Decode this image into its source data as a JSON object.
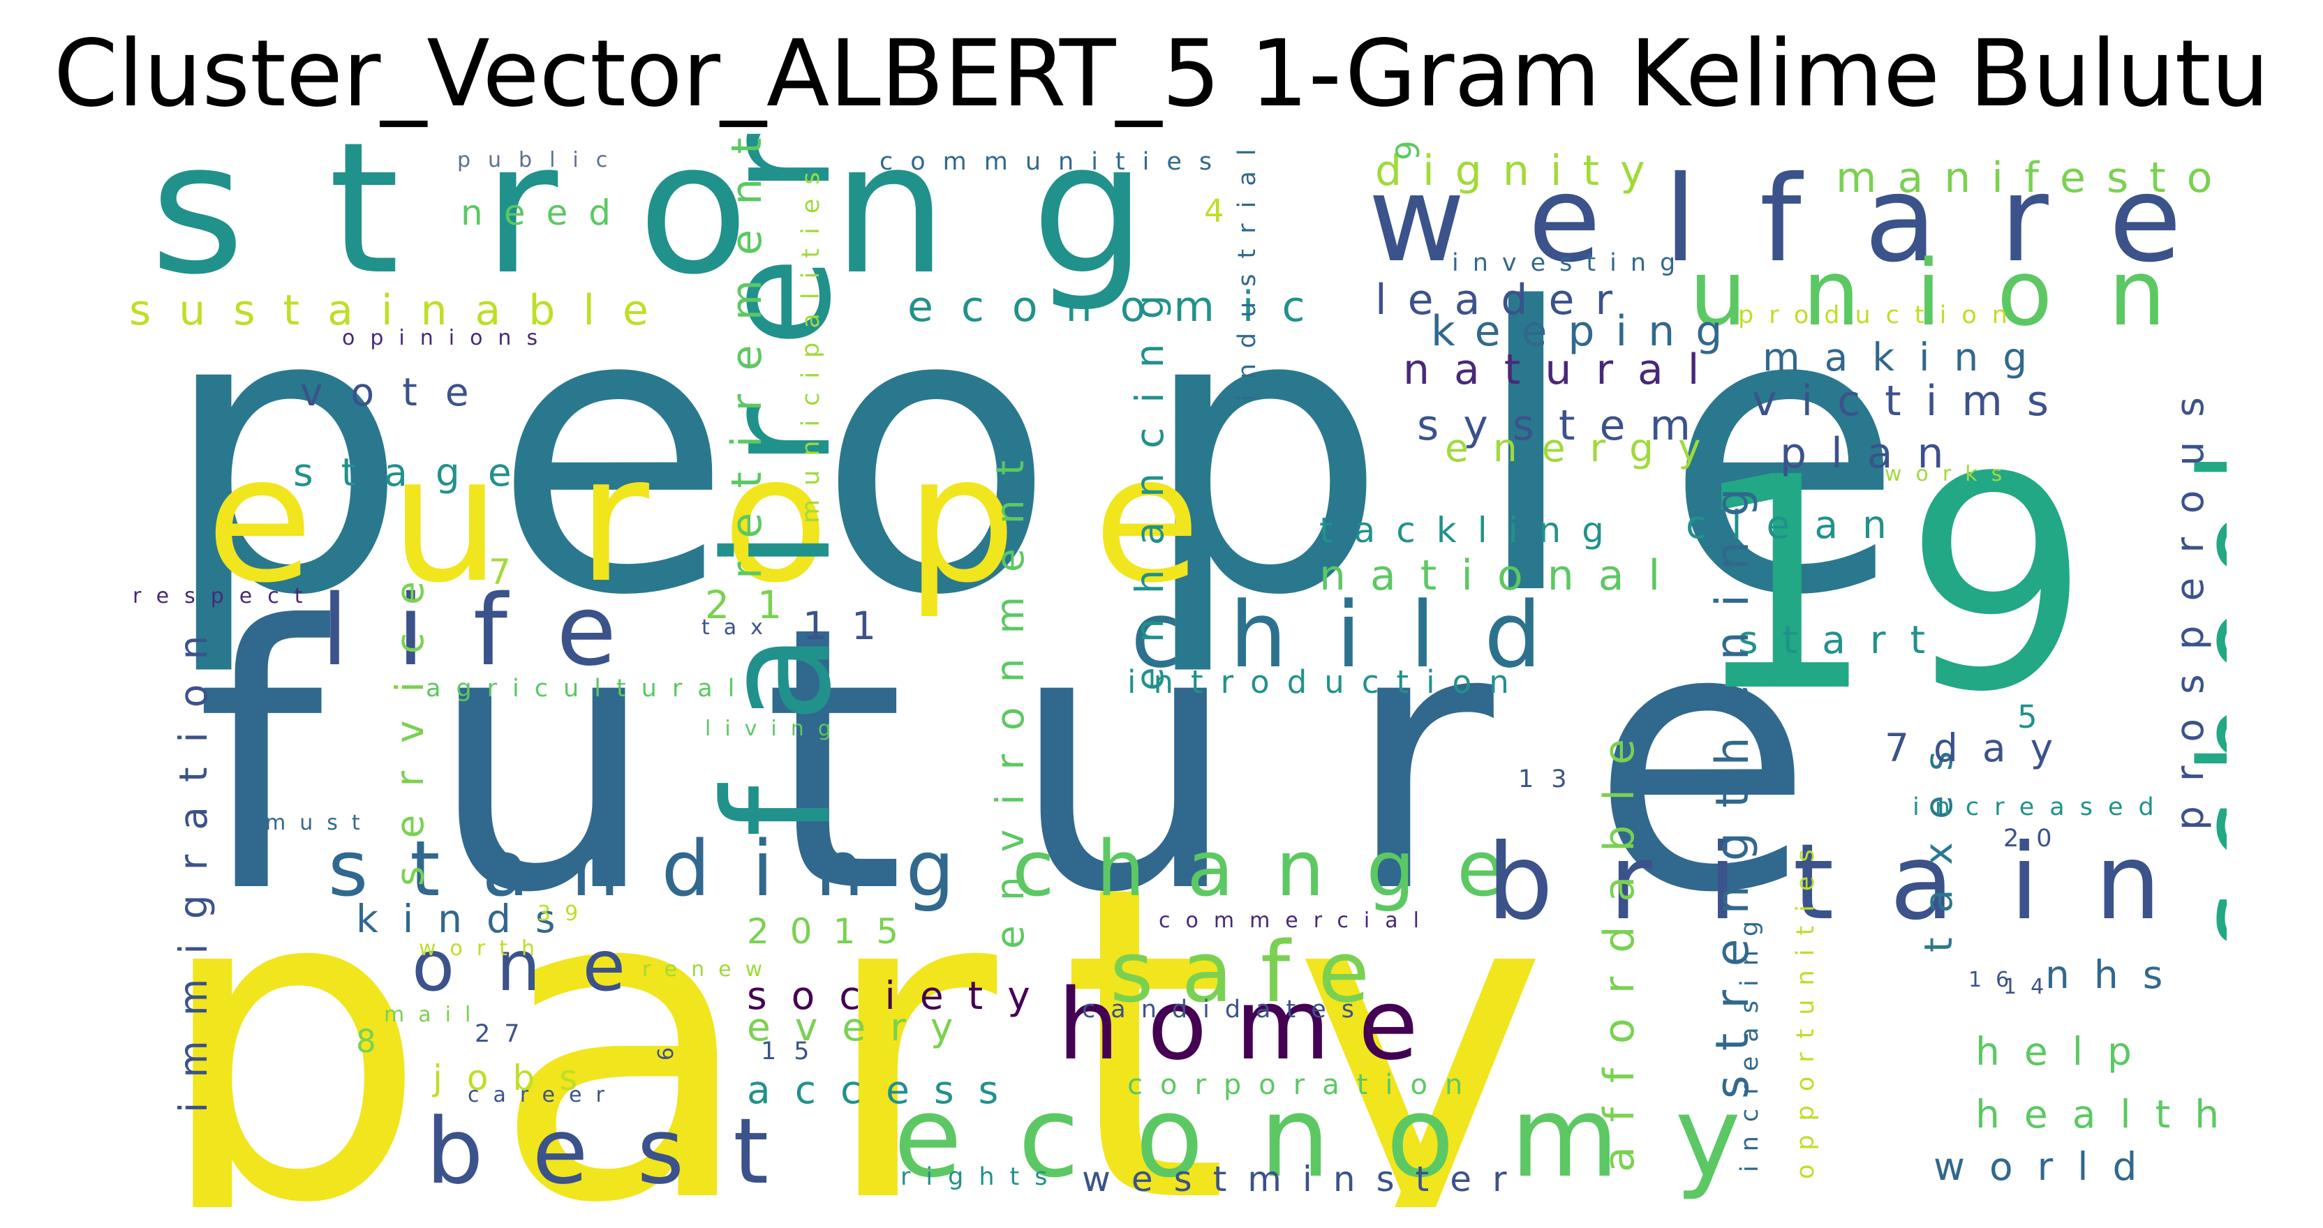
{
  "title": "Cluster_Vector_ALBERT_5 1-Gram Kelime Bulutu",
  "palette": {
    "yellow": "#f1e51d",
    "green": "#5cc863",
    "teal": "#21918c",
    "blue": "#31688e",
    "navy": "#3b528b",
    "purple": "#440154",
    "lime": "#a0da39",
    "seafoam": "#29af7f"
  },
  "words": [
    {
      "text": "people",
      "color": "#2a788e"
    },
    {
      "text": "future",
      "color": "#31688e"
    },
    {
      "text": "party",
      "color": "#f1e51d"
    },
    {
      "text": "strong",
      "color": "#21918c"
    },
    {
      "text": "europe",
      "color": "#f1e51d"
    },
    {
      "text": "19",
      "color": "#22a884"
    },
    {
      "text": "welfare",
      "color": "#3b528b"
    },
    {
      "text": "union",
      "color": "#5cc863"
    },
    {
      "text": "fairer",
      "color": "#21918c"
    },
    {
      "text": "life",
      "color": "#3b528b"
    },
    {
      "text": "child",
      "color": "#2c728e"
    },
    {
      "text": "standing",
      "color": "#31688e"
    },
    {
      "text": "change",
      "color": "#5cc863"
    },
    {
      "text": "britain",
      "color": "#3b528b"
    },
    {
      "text": "school",
      "color": "#22a884"
    },
    {
      "text": "home",
      "color": "#440154"
    },
    {
      "text": "safe",
      "color": "#7ad151"
    },
    {
      "text": "best",
      "color": "#3b528b"
    },
    {
      "text": "economy",
      "color": "#5cc863"
    },
    {
      "text": "one",
      "color": "#3b528b"
    },
    {
      "text": "sustainable",
      "color": "#bddf26"
    },
    {
      "text": "economic",
      "color": "#21918c"
    },
    {
      "text": "dignity",
      "color": "#a0da39"
    },
    {
      "text": "manifesto",
      "color": "#7ad151"
    },
    {
      "text": "leader",
      "color": "#3b528b"
    },
    {
      "text": "keeping",
      "color": "#31688e"
    },
    {
      "text": "natural",
      "color": "#482878"
    },
    {
      "text": "system",
      "color": "#3b528b"
    },
    {
      "text": "energy",
      "color": "#a0da39"
    },
    {
      "text": "making",
      "color": "#31688e"
    },
    {
      "text": "victims",
      "color": "#3b528b"
    },
    {
      "text": "plan",
      "color": "#3b528b"
    },
    {
      "text": "clean",
      "color": "#21918c"
    },
    {
      "text": "tackling",
      "color": "#21918c"
    },
    {
      "text": "national",
      "color": "#5cc863"
    },
    {
      "text": "start",
      "color": "#21918c"
    },
    {
      "text": "introduction",
      "color": "#21918c"
    },
    {
      "text": "enhancing",
      "color": "#21918c"
    },
    {
      "text": "environment",
      "color": "#5cc863"
    },
    {
      "text": "retirement",
      "color": "#5cc863"
    },
    {
      "text": "strengthening",
      "color": "#31688e"
    },
    {
      "text": "affordable",
      "color": "#7ad151"
    },
    {
      "text": "taxes",
      "color": "#2a788e"
    },
    {
      "text": "prosperous",
      "color": "#3b528b"
    },
    {
      "text": "immigration",
      "color": "#3b528b"
    },
    {
      "text": "service",
      "color": "#7ad151"
    },
    {
      "text": "need",
      "color": "#5cc863"
    },
    {
      "text": "communities",
      "color": "#31688e"
    },
    {
      "text": "investing",
      "color": "#31688e"
    },
    {
      "text": "public",
      "color": "#5c6f8e"
    },
    {
      "text": "opinions",
      "color": "#482878"
    },
    {
      "text": "vote",
      "color": "#3b528b"
    },
    {
      "text": "stage",
      "color": "#21918c"
    },
    {
      "text": "respect",
      "color": "#482878"
    },
    {
      "text": "tax",
      "color": "#3b528b"
    },
    {
      "text": "11",
      "color": "#3b528b"
    },
    {
      "text": "21",
      "color": "#7ad151"
    },
    {
      "text": "7",
      "color": "#a0da39"
    },
    {
      "text": "agricultural",
      "color": "#5cc863"
    },
    {
      "text": "living",
      "color": "#5cc863"
    },
    {
      "text": "must",
      "color": "#31688e"
    },
    {
      "text": "kinds",
      "color": "#31688e"
    },
    {
      "text": "39",
      "color": "#bddf26"
    },
    {
      "text": "worth",
      "color": "#bddf26"
    },
    {
      "text": "2015",
      "color": "#7ad151"
    },
    {
      "text": "society",
      "color": "#440154"
    },
    {
      "text": "every",
      "color": "#7ad151"
    },
    {
      "text": "15",
      "color": "#3b528b"
    },
    {
      "text": "mail",
      "color": "#7ad151"
    },
    {
      "text": "27",
      "color": "#3b528b"
    },
    {
      "text": "8",
      "color": "#7ad151"
    },
    {
      "text": "6",
      "color": "#3b528b"
    },
    {
      "text": "jobs",
      "color": "#bddf26"
    },
    {
      "text": "career",
      "color": "#3b528b"
    },
    {
      "text": "access",
      "color": "#21918c"
    },
    {
      "text": "renew",
      "color": "#a0da39"
    },
    {
      "text": "candidates",
      "color": "#3b528b"
    },
    {
      "text": "corporation",
      "color": "#5cc863"
    },
    {
      "text": "commercial",
      "color": "#482878"
    },
    {
      "text": "westminster",
      "color": "#3b528b"
    },
    {
      "text": "rights",
      "color": "#21918c"
    },
    {
      "text": "municipalities",
      "color": "#a0da39"
    },
    {
      "text": "industrial",
      "color": "#31688e"
    },
    {
      "text": "4",
      "color": "#bddf26"
    },
    {
      "text": "9",
      "color": "#5cc863"
    },
    {
      "text": "production",
      "color": "#bddf26"
    },
    {
      "text": "works",
      "color": "#a0da39"
    },
    {
      "text": "13",
      "color": "#3b528b"
    },
    {
      "text": "7day",
      "color": "#3b528b"
    },
    {
      "text": "5",
      "color": "#21918c"
    },
    {
      "text": "increased",
      "color": "#21918c"
    },
    {
      "text": "20",
      "color": "#3b528b"
    },
    {
      "text": "increasing",
      "color": "#31688e"
    },
    {
      "text": "opportunities",
      "color": "#bddf26"
    },
    {
      "text": "16",
      "color": "#3b528b"
    },
    {
      "text": "14",
      "color": "#3b528b"
    },
    {
      "text": "nhs",
      "color": "#31688e"
    },
    {
      "text": "help",
      "color": "#5cc863"
    },
    {
      "text": "health",
      "color": "#5cc863"
    },
    {
      "text": "world",
      "color": "#31688e"
    }
  ]
}
